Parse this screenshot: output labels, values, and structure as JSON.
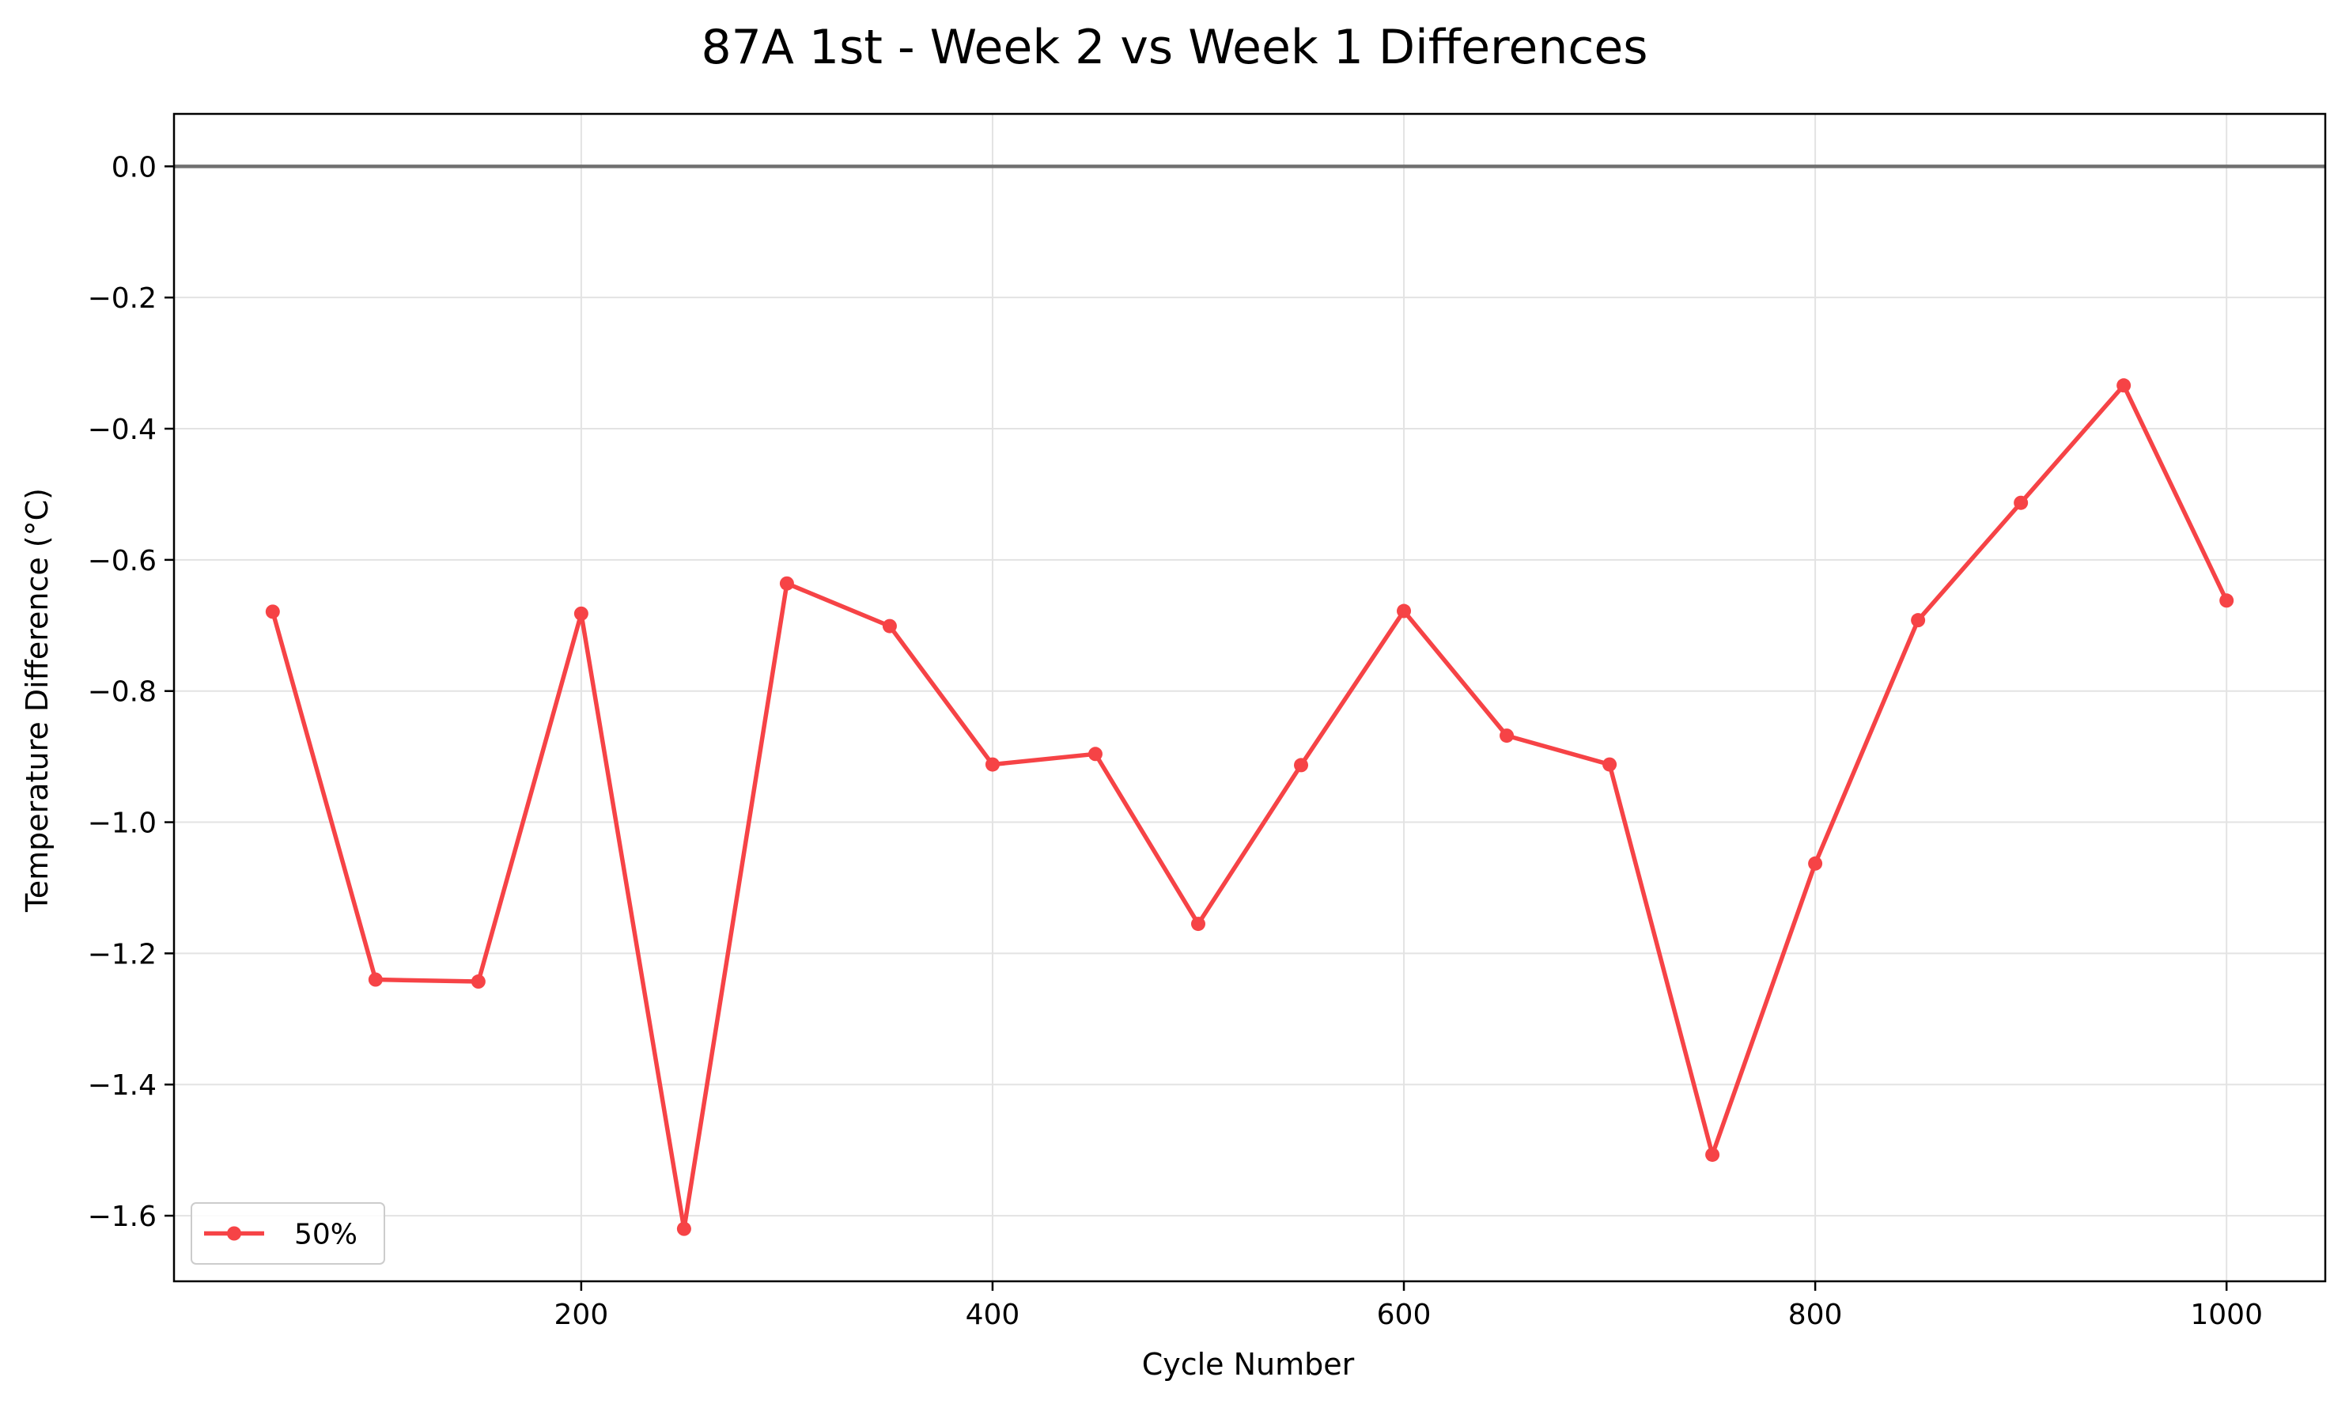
{
  "chart_data": {
    "type": "line",
    "title": "87A 1st - Week 2 vs Week 1 Differences",
    "xlabel": "Cycle Number",
    "ylabel": "Temperature Difference (°C)",
    "xlim": [
      2,
      1048
    ],
    "ylim": [
      -1.7,
      0.08
    ],
    "x_ticks": [
      200,
      400,
      600,
      800,
      1000
    ],
    "x_tick_labels": [
      "200",
      "400",
      "600",
      "800",
      "1000"
    ],
    "y_ticks": [
      0.0,
      -0.2,
      -0.4,
      -0.6,
      -0.8,
      -1.0,
      -1.2,
      -1.4,
      -1.6
    ],
    "y_tick_labels": [
      "0.0",
      "−0.2",
      "−0.4",
      "−0.6",
      "−0.8",
      "−1.0",
      "−1.2",
      "−1.4",
      "−1.6"
    ],
    "grid": true,
    "reference_line": {
      "y": 0.0,
      "color": "#707070"
    },
    "legend_position": "lower-left",
    "series": [
      {
        "name": "50%",
        "color": "#f64346",
        "marker": "circle",
        "x": [
          50,
          100,
          150,
          200,
          250,
          300,
          350,
          400,
          450,
          500,
          550,
          600,
          650,
          700,
          750,
          800,
          850,
          900,
          950,
          1000
        ],
        "y": [
          -0.679,
          -1.24,
          -1.243,
          -0.682,
          -1.62,
          -0.636,
          -0.701,
          -0.912,
          -0.896,
          -1.155,
          -0.913,
          -0.678,
          -0.868,
          -0.912,
          -1.507,
          -1.063,
          -0.692,
          -0.513,
          -0.334,
          -0.662
        ]
      }
    ]
  }
}
